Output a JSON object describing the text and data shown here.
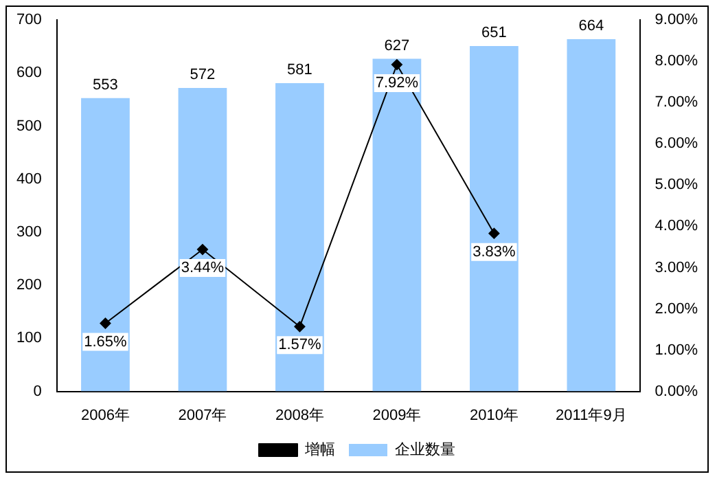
{
  "chart_data": {
    "type": "bar",
    "categories": [
      "2006年",
      "2007年",
      "2008年",
      "2009年",
      "2010年",
      "2011年9月"
    ],
    "series": [
      {
        "name": "企业数量",
        "color": "#99ccff",
        "values": [
          553,
          572,
          581,
          627,
          651,
          664
        ],
        "value_labels": [
          "553",
          "572",
          "581",
          "627",
          "651",
          "664"
        ]
      },
      {
        "name": "增幅",
        "type": "line",
        "color": "#000000",
        "axis": "y2",
        "values": [
          1.65,
          3.44,
          1.57,
          7.92,
          3.83,
          null
        ],
        "value_labels": [
          "1.65%",
          "3.44%",
          "1.57%",
          "7.92%",
          "3.83%",
          null
        ]
      }
    ],
    "ylim": [
      0,
      700
    ],
    "yticks": [
      0,
      100,
      200,
      300,
      400,
      500,
      600,
      700
    ],
    "y2lim": [
      0,
      9
    ],
    "y2ticks": [
      {
        "value": 0,
        "label": "0.00%"
      },
      {
        "value": 1,
        "label": "1.00%"
      },
      {
        "value": 2,
        "label": "2.00%"
      },
      {
        "value": 3,
        "label": "3.00%"
      },
      {
        "value": 4,
        "label": "4.00%"
      },
      {
        "value": 5,
        "label": "5.00%"
      },
      {
        "value": 6,
        "label": "6.00%"
      },
      {
        "value": 7,
        "label": "7.00%"
      },
      {
        "value": 8,
        "label": "8.00%"
      },
      {
        "value": 9,
        "label": "9.00%"
      }
    ],
    "legend": "bottom",
    "marker": "diamond"
  }
}
